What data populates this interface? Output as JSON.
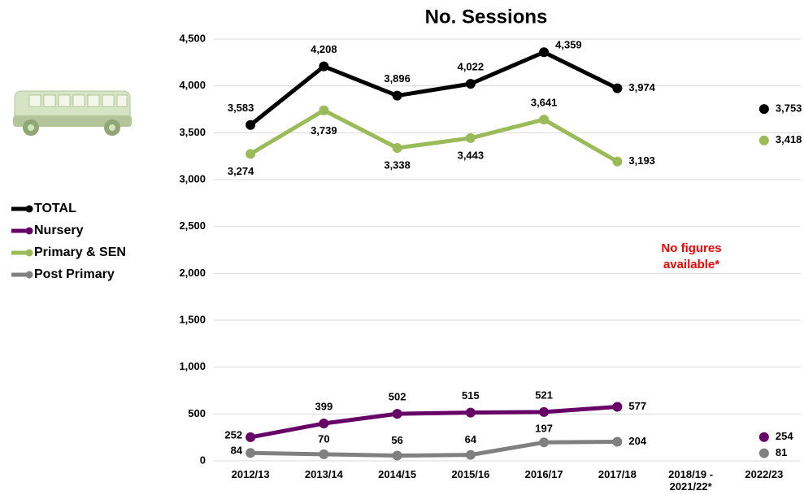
{
  "chart_data": {
    "type": "line",
    "title": "No. Sessions",
    "categories": [
      "2012/13",
      "2013/14",
      "2014/15",
      "2015/16",
      "2016/17",
      "2017/18",
      "2018/19 - 2021/22*",
      "2022/23"
    ],
    "series": [
      {
        "name": "TOTAL",
        "color": "#000000",
        "values": [
          3583,
          4208,
          3896,
          4022,
          4359,
          3974,
          null,
          3753
        ],
        "value_labels": [
          "3,583",
          "4,208",
          "3,896",
          "4,022",
          "4,359",
          "3,974",
          null,
          "3,753"
        ]
      },
      {
        "name": "Nursery",
        "color": "#660066",
        "values": [
          252,
          399,
          502,
          515,
          521,
          577,
          null,
          254
        ]
      },
      {
        "name": "Primary & SEN",
        "color": "#9bbb59",
        "values": [
          3274,
          3739,
          3338,
          3443,
          3641,
          3193,
          null,
          3418
        ],
        "value_labels": [
          "3,274",
          "3,739",
          "3,338",
          "3,443",
          "3,641",
          "3,193",
          null,
          "3,418"
        ]
      },
      {
        "name": "Post Primary",
        "color": "#808080",
        "values": [
          84,
          70,
          56,
          64,
          197,
          204,
          null,
          81
        ]
      }
    ],
    "ylim": [
      0,
      4500
    ],
    "yticks": [
      0,
      500,
      {
        "value": 1000,
        "label": "1,000"
      },
      {
        "value": 1500,
        "label": "1,500"
      },
      {
        "value": 2000,
        "label": "2,000"
      },
      {
        "value": 2500,
        "label": "2,500"
      },
      {
        "value": 3000,
        "label": "3,000"
      },
      {
        "value": 3500,
        "label": "3,500"
      },
      {
        "value": 4000,
        "label": "4,000"
      },
      {
        "value": 4500,
        "label": "4,500"
      }
    ],
    "grid": true,
    "annotation": "No figures available*",
    "annotation_color": "#ff0000"
  }
}
